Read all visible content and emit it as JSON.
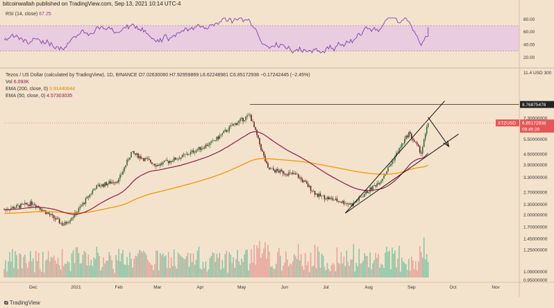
{
  "header": {
    "publisher_text": "bitcoinwallah published on TradingView.com, Sep 13, 2021 10:14 UTC-4"
  },
  "rsi": {
    "label": "RSI (14, close)",
    "value": "67.25",
    "axis_ticks": [
      "80.00",
      "60.00",
      "40.00",
      "20.00"
    ],
    "upper_band": 70,
    "lower_band": 30
  },
  "legend": {
    "title_line": "Tezos / US Dollar (calculated by TradingView), 1D, BINANCE",
    "o_label": "O",
    "o_value": "7.02630060",
    "h_label": "H",
    "h_value": "7.92959869",
    "l_label": "L",
    "l_value": "6.62248981",
    "c_label": "C",
    "c_value": "6.85172938",
    "change": "−0.17242445 (−2.45%)",
    "vol_label": "Vol",
    "vol_value": "6.093K",
    "ema200_label": "EMA (200, close, 0)",
    "ema200_value": "3.91440644",
    "ema50_label": "EMA (50, close, 0)",
    "ema50_value": "4.57303035"
  },
  "price_axis": {
    "currency": "11.4 USD 300",
    "ticks": [
      "7.30000000",
      "5.50000000",
      "4.50000000",
      "3.90000000",
      "3.30000000",
      "2.70000000",
      "2.30000000",
      "2.00000000",
      "1.70000000",
      "1.45000000",
      "1.25000000",
      "1.09000000",
      "0.95000000"
    ],
    "high_tag": "8.76875478",
    "symbol_tag": "XTZUSD",
    "price_tag": "6.85172938",
    "countdown_tag": "09:45:29"
  },
  "time_axis": [
    "Dec",
    "2021",
    "Feb",
    "Mar",
    "Apr",
    "May",
    "Jun",
    "Jul",
    "Aug",
    "Sep",
    "Oct",
    "Nov"
  ],
  "footer": {
    "brand": "TradingView"
  },
  "colors": {
    "background": "#f4e3cc",
    "up_candle": "#2e6b3a",
    "down_candle": "#6b1e24",
    "ema50": "#8b1a4d",
    "ema200": "#f29a0e",
    "rsi_line": "#7e3fa8",
    "rsi_band_fill": "#e9cce0",
    "vol_up": "#87c6a6",
    "vol_down": "#e7a39b"
  },
  "chart_data": {
    "type": "candlestick",
    "title": "Tezos / US Dollar (calculated by TradingView), 1D, BINANCE",
    "xlabel": "",
    "ylabel": "",
    "y_scale": "log",
    "y_range": [
      0.95,
      11.4
    ],
    "x_range": [
      "2020-11-10",
      "2021-11-15"
    ],
    "last_close": 6.85172938,
    "all_time_high_line": 8.76875478,
    "price_path_approx": [
      {
        "x": "2020-11-10",
        "close": 2.15
      },
      {
        "x": "2020-12-01",
        "close": 2.35
      },
      {
        "x": "2020-12-23",
        "close": 1.75
      },
      {
        "x": "2021-01-01",
        "close": 2.05
      },
      {
        "x": "2021-01-15",
        "close": 2.9
      },
      {
        "x": "2021-02-01",
        "close": 3.2
      },
      {
        "x": "2021-02-10",
        "close": 4.6
      },
      {
        "x": "2021-03-01",
        "close": 3.9
      },
      {
        "x": "2021-03-20",
        "close": 4.4
      },
      {
        "x": "2021-04-10",
        "close": 5.3
      },
      {
        "x": "2021-04-25",
        "close": 6.7
      },
      {
        "x": "2021-05-07",
        "close": 7.6
      },
      {
        "x": "2021-05-20",
        "close": 3.7
      },
      {
        "x": "2021-06-10",
        "close": 3.4
      },
      {
        "x": "2021-06-25",
        "close": 2.6
      },
      {
        "x": "2021-07-20",
        "close": 2.3
      },
      {
        "x": "2021-08-10",
        "close": 3.2
      },
      {
        "x": "2021-08-30",
        "close": 6.0
      },
      {
        "x": "2021-09-08",
        "close": 4.6
      },
      {
        "x": "2021-09-13",
        "close": 6.85
      }
    ],
    "ema200_current": 3.91440644,
    "ema50_current": 4.57303035,
    "rsi_current": 67.25
  }
}
